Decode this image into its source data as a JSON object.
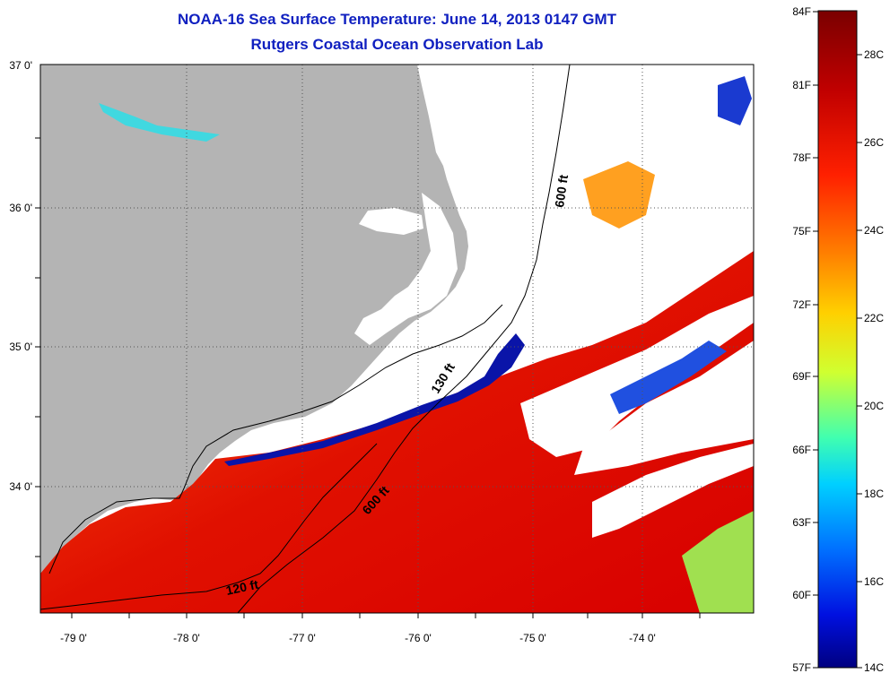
{
  "title_line1": "NOAA-16 Sea Surface Temperature:  June 14, 2013 0147 GMT",
  "title_line2": "Rutgers Coastal Ocean Observation Lab",
  "axes": {
    "lon_labels": [
      "-79 0'",
      "-78 0'",
      "-77 0'",
      "-76 0'",
      "-75 0'",
      "-74 0'"
    ],
    "lat_labels": [
      "37 0'",
      "36 0'",
      "35 0'",
      "34 0'"
    ]
  },
  "isobaths": [
    {
      "label": "600 ft"
    },
    {
      "label": "130 ft"
    },
    {
      "label": "600 ft"
    },
    {
      "label": "120 ft"
    }
  ],
  "colorbar": {
    "fahrenheit": [
      "84F",
      "81F",
      "78F",
      "75F",
      "72F",
      "69F",
      "66F",
      "63F",
      "60F",
      "57F"
    ],
    "celsius": [
      "28C",
      "26C",
      "24C",
      "22C",
      "20C",
      "18C",
      "16C",
      "14C"
    ]
  },
  "colors": {
    "land": "#b4b4b4",
    "title": "#1020c0",
    "no_data": "#ffffff"
  }
}
